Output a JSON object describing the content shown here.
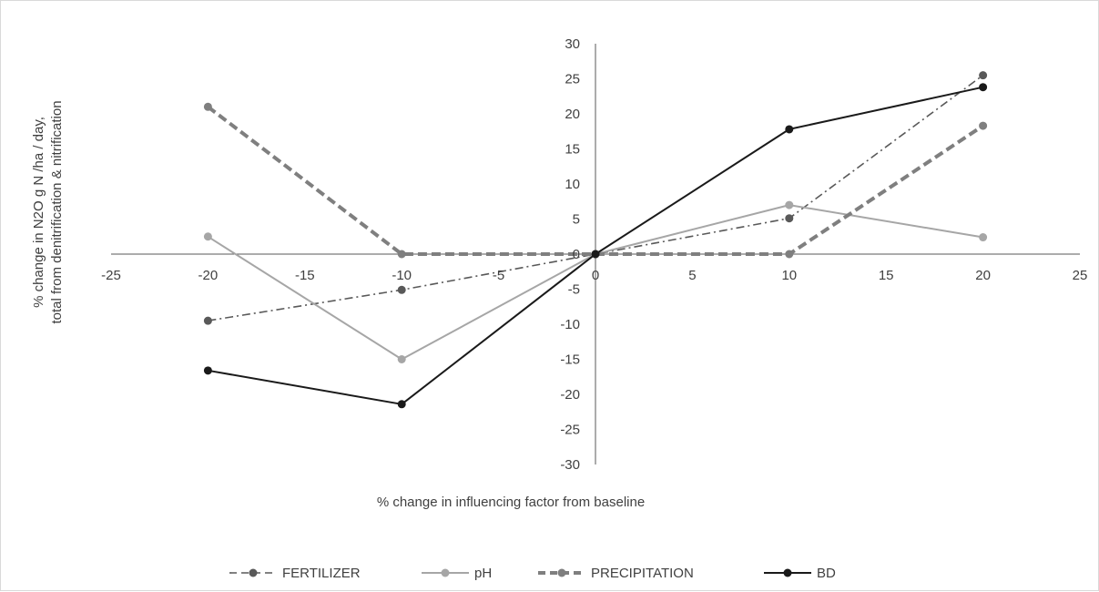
{
  "chart_data": {
    "type": "line",
    "title": "",
    "xlabel": "% change in influencing factor from baseline",
    "ylabel_lines": [
      "% change in N2O g N /ha / day,",
      "total from denitrification & nitrification"
    ],
    "xlim": [
      -25,
      25
    ],
    "ylim": [
      -30,
      30
    ],
    "x_ticks": [
      -25,
      -20,
      -15,
      -10,
      -5,
      0,
      5,
      10,
      15,
      20,
      25
    ],
    "y_ticks": [
      30,
      25,
      20,
      15,
      10,
      5,
      0,
      -5,
      -10,
      -15,
      -20,
      -25,
      -30
    ],
    "x": [
      -20,
      -10,
      0,
      10,
      20
    ],
    "grid": false,
    "legend_position": "bottom",
    "series": [
      {
        "name": "FERTILIZER",
        "values": [
          -9.5,
          -5.1,
          0,
          5.1,
          25.5
        ],
        "color": "#595959",
        "line_style": "dash-dot"
      },
      {
        "name": "pH",
        "values": [
          2.5,
          -15,
          0,
          7,
          2.4
        ],
        "color": "#a6a6a6",
        "line_style": "solid"
      },
      {
        "name": "PRECIPITATION",
        "values": [
          21,
          0,
          0,
          0,
          18.3
        ],
        "color": "#7f7f7f",
        "line_style": "thick-dash"
      },
      {
        "name": "BD",
        "values": [
          -16.6,
          -21.4,
          0,
          17.8,
          23.8
        ],
        "color": "#1a1a1a",
        "line_style": "solid"
      }
    ]
  }
}
